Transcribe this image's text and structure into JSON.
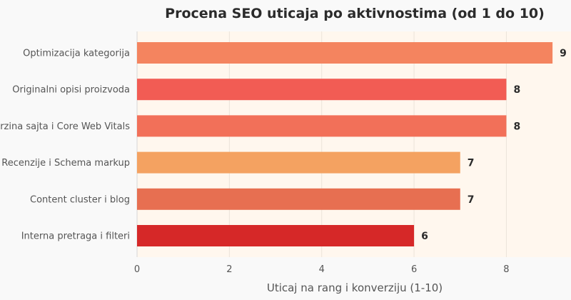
{
  "chart_data": {
    "type": "bar",
    "orientation": "horizontal",
    "title": "Procena SEO uticaja po aktivnostima (od 1 do 10)",
    "xlabel": "Uticaj na rang i konverziju (1-10)",
    "ylabel": "",
    "xlim": [
      0,
      9.4
    ],
    "xticks": [
      0,
      2,
      4,
      6,
      8
    ],
    "grid": true,
    "categories": [
      "Optimizacija kategorija",
      "Originalni opisi proizvoda",
      "Brzina sajta i Core Web Vitals",
      "Recenzije i Schema markup",
      "Content cluster i blog",
      "Interna pretraga i filteri"
    ],
    "values": [
      9,
      8,
      8,
      7,
      7,
      6
    ],
    "colors": [
      "#f4845f",
      "#f25c54",
      "#f27059",
      "#f4a261",
      "#e76f51",
      "#d62828"
    ],
    "plot_background": "#fff7ee"
  }
}
